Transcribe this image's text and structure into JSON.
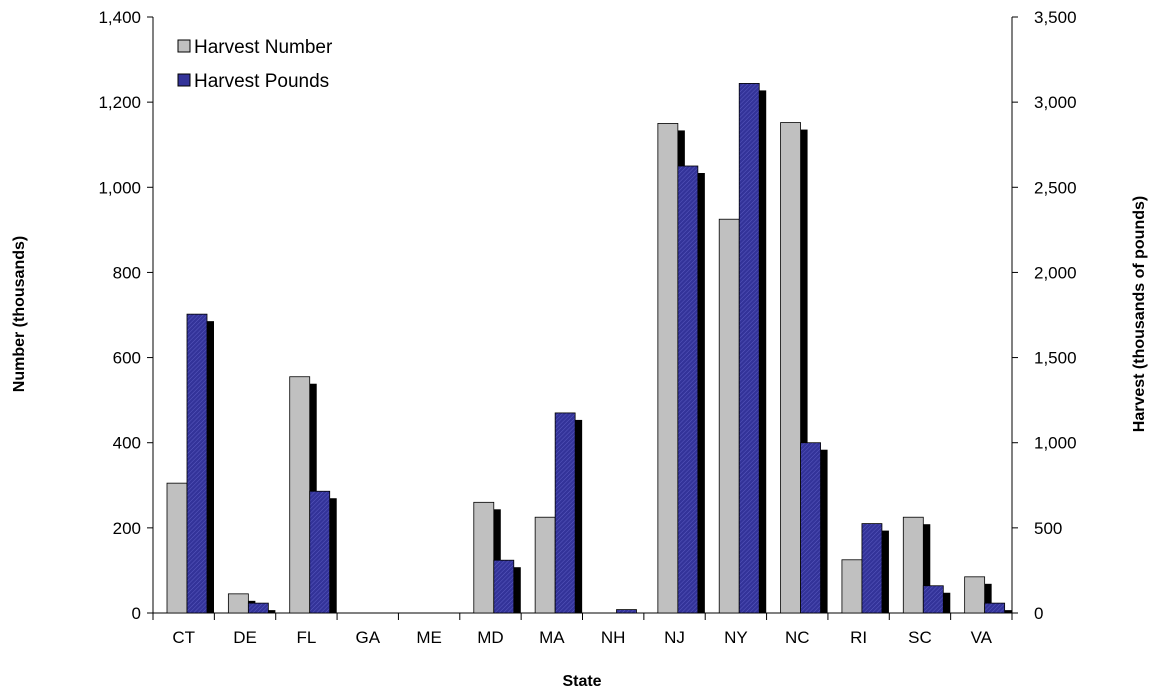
{
  "chart_data": {
    "type": "bar",
    "xlabel": "State",
    "ylabel": "Number (thousands)",
    "y2label": "Harvest (thousands of pounds)",
    "categories": [
      "CT",
      "DE",
      "FL",
      "GA",
      "ME",
      "MD",
      "MA",
      "NH",
      "NJ",
      "NY",
      "NC",
      "RI",
      "SC",
      "VA"
    ],
    "ylim": [
      0,
      1400
    ],
    "y2lim": [
      0,
      3500
    ],
    "yticks": [
      "0",
      "200",
      "400",
      "600",
      "800",
      "1,000",
      "1,200",
      "1,400"
    ],
    "y2ticks": [
      "0",
      "500",
      "1,000",
      "1,500",
      "2,000",
      "2,500",
      "3,000",
      "3,500"
    ],
    "legend_position": "top-left",
    "series": [
      {
        "name": "Harvest Number",
        "axis": "left",
        "color": "#c0c0c0",
        "values": [
          305,
          45,
          555,
          0,
          0,
          260,
          225,
          0,
          1150,
          925,
          1152,
          125,
          225,
          85
        ]
      },
      {
        "name": "Harvest Pounds",
        "axis": "right",
        "color": "#333399",
        "values": [
          1755,
          58,
          715,
          0,
          0,
          310,
          1175,
          20,
          2625,
          3110,
          1000,
          525,
          160,
          58
        ]
      }
    ]
  }
}
